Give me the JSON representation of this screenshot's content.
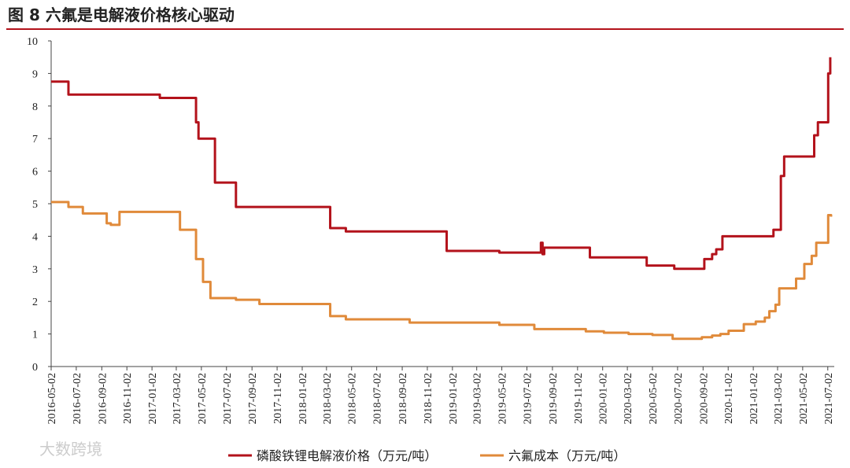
{
  "chart_data": {
    "type": "line",
    "title": "图 8 六氟是电解液价格核心驱动",
    "watermark": "大数跨境",
    "step": true,
    "xlim": [
      "2016-05-02",
      "2021-07-12"
    ],
    "xticks": [
      "2016-05-02",
      "2016-07-02",
      "2016-09-02",
      "2016-11-02",
      "2017-01-02",
      "2017-03-02",
      "2017-05-02",
      "2017-07-02",
      "2017-09-02",
      "2017-11-02",
      "2018-01-02",
      "2018-03-02",
      "2018-05-02",
      "2018-07-02",
      "2018-09-02",
      "2018-11-02",
      "2019-01-02",
      "2019-03-02",
      "2019-05-02",
      "2019-07-02",
      "2019-09-02",
      "2019-11-02",
      "2020-01-02",
      "2020-03-02",
      "2020-05-02",
      "2020-07-02",
      "2020-09-02",
      "2020-11-02",
      "2021-01-02",
      "2021-03-02",
      "2021-05-02",
      "2021-07-02"
    ],
    "ylim": [
      0,
      10
    ],
    "yticks": [
      0,
      1,
      2,
      3,
      4,
      5,
      6,
      7,
      8,
      9,
      10
    ],
    "series": [
      {
        "name": "磷酸铁锂电解液价格（万元/吨）",
        "color": "#b3121b",
        "x": [
          "2016-05-02",
          "2016-06-13",
          "2017-01-21",
          "2017-04-19",
          "2017-04-25",
          "2017-06-04",
          "2017-07-25",
          "2018-03-11",
          "2018-04-18",
          "2018-12-19",
          "2019-04-26",
          "2019-08-05",
          "2019-08-09",
          "2019-08-13",
          "2019-12-02",
          "2020-04-18",
          "2020-06-24",
          "2020-09-05",
          "2020-09-24",
          "2020-10-04",
          "2020-10-19",
          "2021-02-20",
          "2021-03-10",
          "2021-03-18",
          "2021-05-30",
          "2021-06-08",
          "2021-07-03",
          "2021-07-08"
        ],
        "values": [
          8.75,
          8.35,
          8.25,
          7.5,
          7.0,
          5.65,
          4.9,
          4.25,
          4.15,
          3.55,
          3.5,
          3.8,
          3.45,
          3.65,
          3.35,
          3.1,
          3.0,
          3.3,
          3.45,
          3.6,
          4.0,
          4.2,
          5.85,
          6.45,
          7.1,
          7.5,
          9.0,
          9.5
        ]
      },
      {
        "name": "六氟成本（万元/吨）",
        "color": "#e08a3a",
        "x": [
          "2016-05-02",
          "2016-06-13",
          "2016-07-18",
          "2016-09-14",
          "2016-09-24",
          "2016-10-15",
          "2017-03-11",
          "2017-04-19",
          "2017-05-06",
          "2017-05-24",
          "2017-07-25",
          "2017-09-20",
          "2018-03-11",
          "2018-04-18",
          "2018-09-20",
          "2019-04-26",
          "2019-07-20",
          "2019-11-22",
          "2020-01-05",
          "2020-03-05",
          "2020-05-02",
          "2020-06-20",
          "2020-08-30",
          "2020-09-24",
          "2020-10-14",
          "2020-11-03",
          "2020-12-10",
          "2021-01-08",
          "2021-01-30",
          "2021-02-10",
          "2021-02-25",
          "2021-03-06",
          "2021-04-16",
          "2021-05-06",
          "2021-05-24",
          "2021-06-04",
          "2021-07-03",
          "2021-07-10"
        ],
        "values": [
          5.05,
          4.9,
          4.7,
          4.4,
          4.35,
          4.75,
          4.2,
          3.3,
          2.6,
          2.1,
          2.05,
          1.92,
          1.55,
          1.45,
          1.35,
          1.28,
          1.15,
          1.08,
          1.04,
          1.0,
          0.97,
          0.85,
          0.9,
          0.95,
          1.0,
          1.1,
          1.3,
          1.38,
          1.5,
          1.7,
          1.9,
          2.4,
          2.7,
          3.15,
          3.4,
          3.8,
          4.65,
          4.6
        ]
      }
    ]
  }
}
